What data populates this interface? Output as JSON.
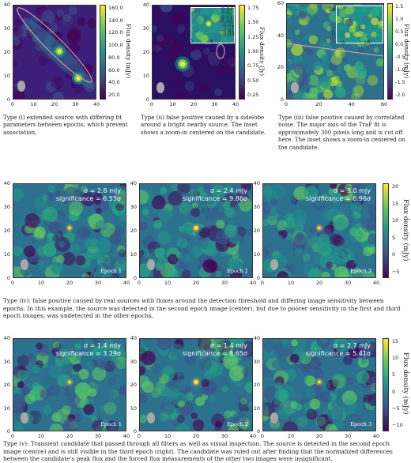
{
  "figure": {
    "panels_top": [
      {
        "id": "type-i",
        "x_ticks": [
          "0",
          "10",
          "20",
          "30",
          "40"
        ],
        "y_ticks": [
          "0",
          "10",
          "20",
          "30",
          "40"
        ],
        "colorbar_label": "Flux density (mJy)",
        "colorbar_ticks": [
          "160.0",
          "140.0",
          "120.0",
          "100.0",
          "80.0",
          "60.0",
          "40.0",
          "20.0"
        ],
        "caption": "Type (i) extended source with differing fit parameters between epochs, which prevent association."
      },
      {
        "id": "type-ii",
        "x_ticks": [
          "0",
          "10",
          "20",
          "30",
          "40"
        ],
        "y_ticks": [
          "0",
          "10",
          "20",
          "30",
          "40"
        ],
        "colorbar_label": "Flux density (Jy)",
        "colorbar_ticks": [
          "1.75",
          "1.50",
          "1.25",
          "1.00",
          "0.75",
          "0.50",
          "0.25"
        ],
        "inset_x_ticks": [
          "0",
          "8"
        ],
        "inset_y_ticks": [
          "8",
          "0"
        ],
        "inset_colorbar_ticks": [
          "0.03",
          "0.02",
          "0.01",
          "0.00",
          "-0.01",
          "-0.02",
          "-0.03"
        ],
        "caption": "Type (ii) false positive caused by a sidelobe around a bright nearby source. The inset shows a zoom-in centered on the candidate."
      },
      {
        "id": "type-iii",
        "x_ticks": [
          "0",
          "20",
          "40",
          "60"
        ],
        "y_ticks": [
          "0",
          "20",
          "40",
          "60"
        ],
        "colorbar_label": "Flux density (mJy)",
        "colorbar_ticks": [
          "1.5",
          "1.0",
          "0.5",
          "0.0",
          "-0.5",
          "-1.0",
          "-1.5",
          "-2.0"
        ],
        "inset_x_ticks": [
          "0",
          "10"
        ],
        "inset_y_ticks": [
          "10",
          "0"
        ],
        "caption": "Type (iii) false positive caused by correlated noise. The major axis of the TraP fit is approximately 300 pixels long and is cut off here. The inset shows a zoom-in centered on the candidate."
      }
    ],
    "row_iv": {
      "panels": [
        {
          "sigma": "σ = 2.8 mJy",
          "significance": "significance = 6.55σ",
          "epoch": "Epoch 1"
        },
        {
          "sigma": "σ = 2.4 mJy",
          "significance": "significance = 9.86σ",
          "epoch": "Epoch 2"
        },
        {
          "sigma": "σ = 3.0 mJy",
          "significance": "significance = 6.96σ",
          "epoch": "Epoch 3"
        }
      ],
      "x_ticks": [
        "0",
        "10",
        "20",
        "30",
        "40"
      ],
      "y_ticks": [
        "0",
        "10",
        "20",
        "30",
        "40"
      ],
      "colorbar_label": "Flux density (mJy)",
      "colorbar_ticks": [
        "20",
        "15",
        "10",
        "5",
        "0",
        "−5"
      ],
      "caption": "Type (iv): false positive caused by real sources with fluxes around the detection threshold and differing image sensitivity between epochs. In this example, the source was detected in the second epoch image (center), but due to poorer sensitivity in the first and third epoch images, was undetected in the other epochs."
    },
    "row_v": {
      "panels": [
        {
          "sigma": "σ = 1.4 mJy",
          "significance": "significance = 3.29σ",
          "epoch": "Epoch 1"
        },
        {
          "sigma": "σ = 1.4 mJy",
          "significance": "significance = 8.65σ",
          "epoch": "Epoch 2"
        },
        {
          "sigma": "σ = 2.7 mJy",
          "significance": "significance = 5.41σ",
          "epoch": "Epoch 3"
        }
      ],
      "x_ticks": [
        "0",
        "10",
        "20",
        "30",
        "40"
      ],
      "y_ticks": [
        "0",
        "10",
        "20",
        "30",
        "40"
      ],
      "colorbar_label": "Flux density (mJy)",
      "colorbar_ticks": [
        "15",
        "10",
        "5",
        "0",
        "−5",
        "−10"
      ],
      "caption": "Type (v): Transient candidate that passed through all filters as well as visual inspection. The source is detected in the second epoch image (centre) and is still visible in the third epoch (right). The candidate was ruled out after finding that the normalized differences between the candidate's peak flux and the forced flux measurements of the other two images were insignificant."
    },
    "colors": {
      "viridis_low": "#440154",
      "viridis_mid": "#21918c",
      "viridis_high": "#fde725",
      "ellipse": "#f4a6a6",
      "beam": "#a8a8a8"
    }
  }
}
